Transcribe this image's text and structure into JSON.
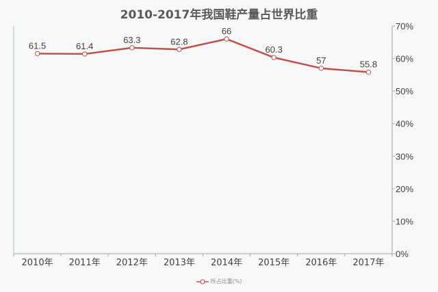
{
  "chart_data": {
    "type": "line",
    "title": "2010-2017年我国鞋产量占世界比重",
    "categories": [
      "2010年",
      "2011年",
      "2012年",
      "2013年",
      "2014年",
      "2015年",
      "2016年",
      "2017年"
    ],
    "series": [
      {
        "name": "所占比重(%)",
        "values": [
          61.5,
          61.4,
          63.3,
          62.8,
          66,
          60.3,
          57,
          55.8
        ],
        "labels": [
          "61.5",
          "61.4",
          "63.3",
          "62.8",
          "66",
          "60.3",
          "57",
          "55.8"
        ],
        "color": "#c0504d",
        "marker": "circle-hollow",
        "axis": "right"
      }
    ],
    "xlabel": "",
    "ylabel": "",
    "ylim": [
      0,
      70
    ],
    "yticks": [
      0,
      10,
      20,
      30,
      40,
      50,
      60,
      70
    ],
    "ytick_labels": [
      "0%",
      "10%",
      "20%",
      "30%",
      "40%",
      "50%",
      "60%",
      "70%"
    ],
    "y_axis_position": "right",
    "grid": false,
    "legend_position": "bottom"
  },
  "colors": {
    "background": "#f7f7f8",
    "line": "#c0504d",
    "axis": "#a6a6a6",
    "left_axis": "#9fc5c0",
    "text": "#404040",
    "title": "#595959"
  }
}
